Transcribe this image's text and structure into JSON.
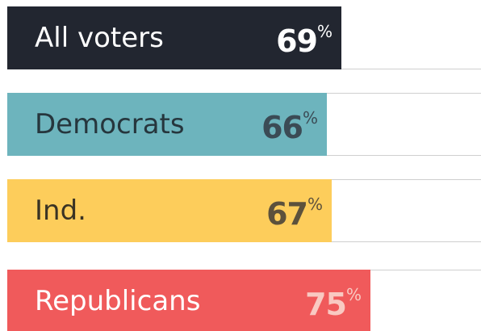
{
  "chart_data": {
    "type": "hbar",
    "categories": [
      "All voters",
      "Democrats",
      "Ind.",
      "Republicans"
    ],
    "values": [
      69,
      66,
      67,
      75
    ],
    "value_labels": [
      "69%",
      "66%",
      "67%",
      "75%"
    ],
    "colors": [
      "#222630",
      "#6db4bd",
      "#fdcd5b",
      "#f05a5b"
    ],
    "label_colors": [
      "#ffffff",
      "#26363d",
      "#3a3324",
      "#ffffff"
    ],
    "value_label_colors": [
      "#ffffff",
      "#3b4b55",
      "#5c513c",
      "#f9c9c2"
    ],
    "xlim": [
      0,
      100
    ]
  }
}
